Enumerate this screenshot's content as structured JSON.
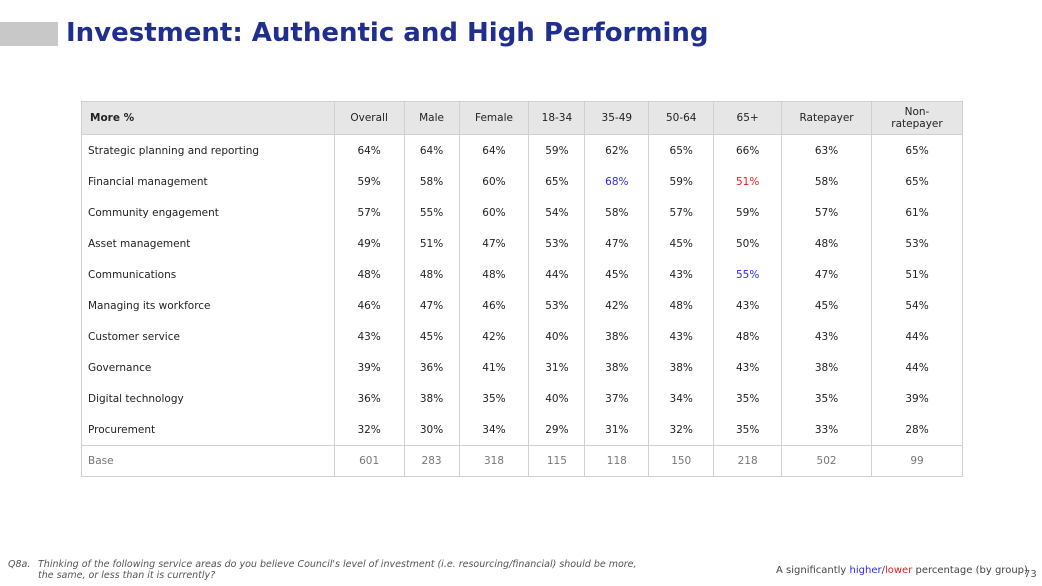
{
  "title": "Investment: Authentic and High Performing",
  "table": {
    "headers": [
      "More %",
      "Overall",
      "Male",
      "Female",
      "18-34",
      "35-49",
      "50-64",
      "65+",
      "Ratepayer",
      "Non-\nratepayer"
    ],
    "rows": [
      {
        "label": "Strategic planning and reporting",
        "cells": [
          {
            "v": "64%"
          },
          {
            "v": "64%"
          },
          {
            "v": "64%"
          },
          {
            "v": "59%"
          },
          {
            "v": "62%"
          },
          {
            "v": "65%"
          },
          {
            "v": "66%"
          },
          {
            "v": "63%"
          },
          {
            "v": "65%"
          }
        ]
      },
      {
        "label": "Financial management",
        "cells": [
          {
            "v": "59%"
          },
          {
            "v": "58%"
          },
          {
            "v": "60%"
          },
          {
            "v": "65%"
          },
          {
            "v": "68%",
            "sig": "higher"
          },
          {
            "v": "59%"
          },
          {
            "v": "51%",
            "sig": "lower"
          },
          {
            "v": "58%"
          },
          {
            "v": "65%"
          }
        ]
      },
      {
        "label": "Community engagement",
        "cells": [
          {
            "v": "57%"
          },
          {
            "v": "55%"
          },
          {
            "v": "60%"
          },
          {
            "v": "54%"
          },
          {
            "v": "58%"
          },
          {
            "v": "57%"
          },
          {
            "v": "59%"
          },
          {
            "v": "57%"
          },
          {
            "v": "61%"
          }
        ]
      },
      {
        "label": "Asset management",
        "cells": [
          {
            "v": "49%"
          },
          {
            "v": "51%"
          },
          {
            "v": "47%"
          },
          {
            "v": "53%"
          },
          {
            "v": "47%"
          },
          {
            "v": "45%"
          },
          {
            "v": "50%"
          },
          {
            "v": "48%"
          },
          {
            "v": "53%"
          }
        ]
      },
      {
        "label": "Communications",
        "cells": [
          {
            "v": "48%"
          },
          {
            "v": "48%"
          },
          {
            "v": "48%"
          },
          {
            "v": "44%"
          },
          {
            "v": "45%"
          },
          {
            "v": "43%"
          },
          {
            "v": "55%",
            "sig": "higher"
          },
          {
            "v": "47%"
          },
          {
            "v": "51%"
          }
        ]
      },
      {
        "label": "Managing its workforce",
        "cells": [
          {
            "v": "46%"
          },
          {
            "v": "47%"
          },
          {
            "v": "46%"
          },
          {
            "v": "53%"
          },
          {
            "v": "42%"
          },
          {
            "v": "48%"
          },
          {
            "v": "43%"
          },
          {
            "v": "45%"
          },
          {
            "v": "54%"
          }
        ]
      },
      {
        "label": "Customer service",
        "cells": [
          {
            "v": "43%"
          },
          {
            "v": "45%"
          },
          {
            "v": "42%"
          },
          {
            "v": "40%"
          },
          {
            "v": "38%"
          },
          {
            "v": "43%"
          },
          {
            "v": "48%"
          },
          {
            "v": "43%"
          },
          {
            "v": "44%"
          }
        ]
      },
      {
        "label": "Governance",
        "cells": [
          {
            "v": "39%"
          },
          {
            "v": "36%"
          },
          {
            "v": "41%"
          },
          {
            "v": "31%"
          },
          {
            "v": "38%"
          },
          {
            "v": "38%"
          },
          {
            "v": "43%"
          },
          {
            "v": "38%"
          },
          {
            "v": "44%"
          }
        ]
      },
      {
        "label": "Digital technology",
        "cells": [
          {
            "v": "36%"
          },
          {
            "v": "38%"
          },
          {
            "v": "35%"
          },
          {
            "v": "40%"
          },
          {
            "v": "37%"
          },
          {
            "v": "34%"
          },
          {
            "v": "35%"
          },
          {
            "v": "35%"
          },
          {
            "v": "39%"
          }
        ]
      },
      {
        "label": "Procurement",
        "cells": [
          {
            "v": "32%"
          },
          {
            "v": "30%"
          },
          {
            "v": "34%"
          },
          {
            "v": "29%"
          },
          {
            "v": "31%"
          },
          {
            "v": "32%"
          },
          {
            "v": "35%"
          },
          {
            "v": "33%"
          },
          {
            "v": "28%"
          }
        ]
      }
    ],
    "base": {
      "label": "Base",
      "cells": [
        "601",
        "283",
        "318",
        "115",
        "118",
        "150",
        "218",
        "502",
        "99"
      ]
    }
  },
  "footnote": {
    "code": "Q8a.",
    "text": "Thinking of the following service areas do you believe Council's level of investment (i.e. resourcing/financial) should be more, the same, or less than it is currently?"
  },
  "legend": {
    "prefix": "A significantly ",
    "higher": "higher",
    "slash": "/",
    "lower": "lower",
    "suffix": " percentage (by group)"
  },
  "page_number": "73",
  "colors": {
    "title": "#1f2e8f",
    "higher": "#2b2be6",
    "lower": "#e02020",
    "header_bg": "#e6e6e6"
  }
}
